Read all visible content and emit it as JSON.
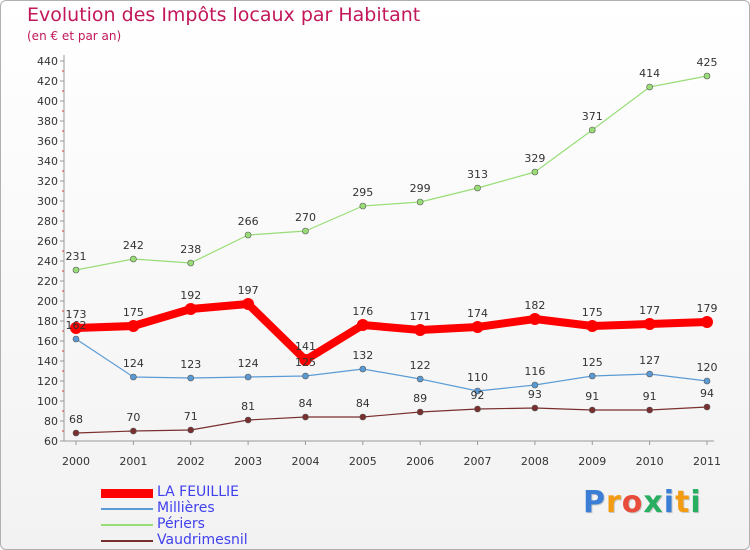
{
  "header": {
    "title": "Evolution des Impôts locaux par Habitant",
    "subtitle": "(en € et par an)"
  },
  "chart_data": {
    "type": "line",
    "title": "Evolution des Impôts locaux par Habitant",
    "subtitle": "(en € et par an)",
    "xlabel": "",
    "ylabel": "",
    "x": [
      2000,
      2001,
      2002,
      2003,
      2004,
      2005,
      2006,
      2007,
      2008,
      2009,
      2010,
      2011
    ],
    "ylim": [
      60,
      440
    ],
    "yticks": [
      60,
      80,
      100,
      120,
      140,
      160,
      180,
      200,
      220,
      240,
      260,
      280,
      300,
      320,
      340,
      360,
      380,
      400,
      420,
      440
    ],
    "grid": false,
    "legend_position": "bottom-left",
    "series": [
      {
        "name": "LA FEUILLIE",
        "color": "#ff0000",
        "values": [
          173,
          175,
          192,
          197,
          141,
          176,
          171,
          174,
          182,
          175,
          177,
          179
        ]
      },
      {
        "name": "Millières",
        "color": "#5b9bd5",
        "values": [
          162,
          124,
          123,
          124,
          125,
          132,
          122,
          110,
          116,
          125,
          127,
          120
        ]
      },
      {
        "name": "Périers",
        "color": "#99dd77",
        "values": [
          231,
          242,
          238,
          266,
          270,
          295,
          299,
          313,
          329,
          371,
          414,
          425
        ]
      },
      {
        "name": "Vaudrimesnil",
        "color": "#7a2f2f",
        "values": [
          68,
          70,
          71,
          81,
          84,
          84,
          89,
          92,
          93,
          91,
          91,
          94
        ]
      }
    ]
  },
  "logo": {
    "letters": [
      "P",
      "r",
      "o",
      "x",
      "i",
      "t",
      "i"
    ],
    "colors": [
      "#3a7fd5",
      "#f39c12",
      "#e74c3c",
      "#27ae60",
      "#3a7fd5",
      "#f39c12",
      "#27ae60"
    ]
  }
}
